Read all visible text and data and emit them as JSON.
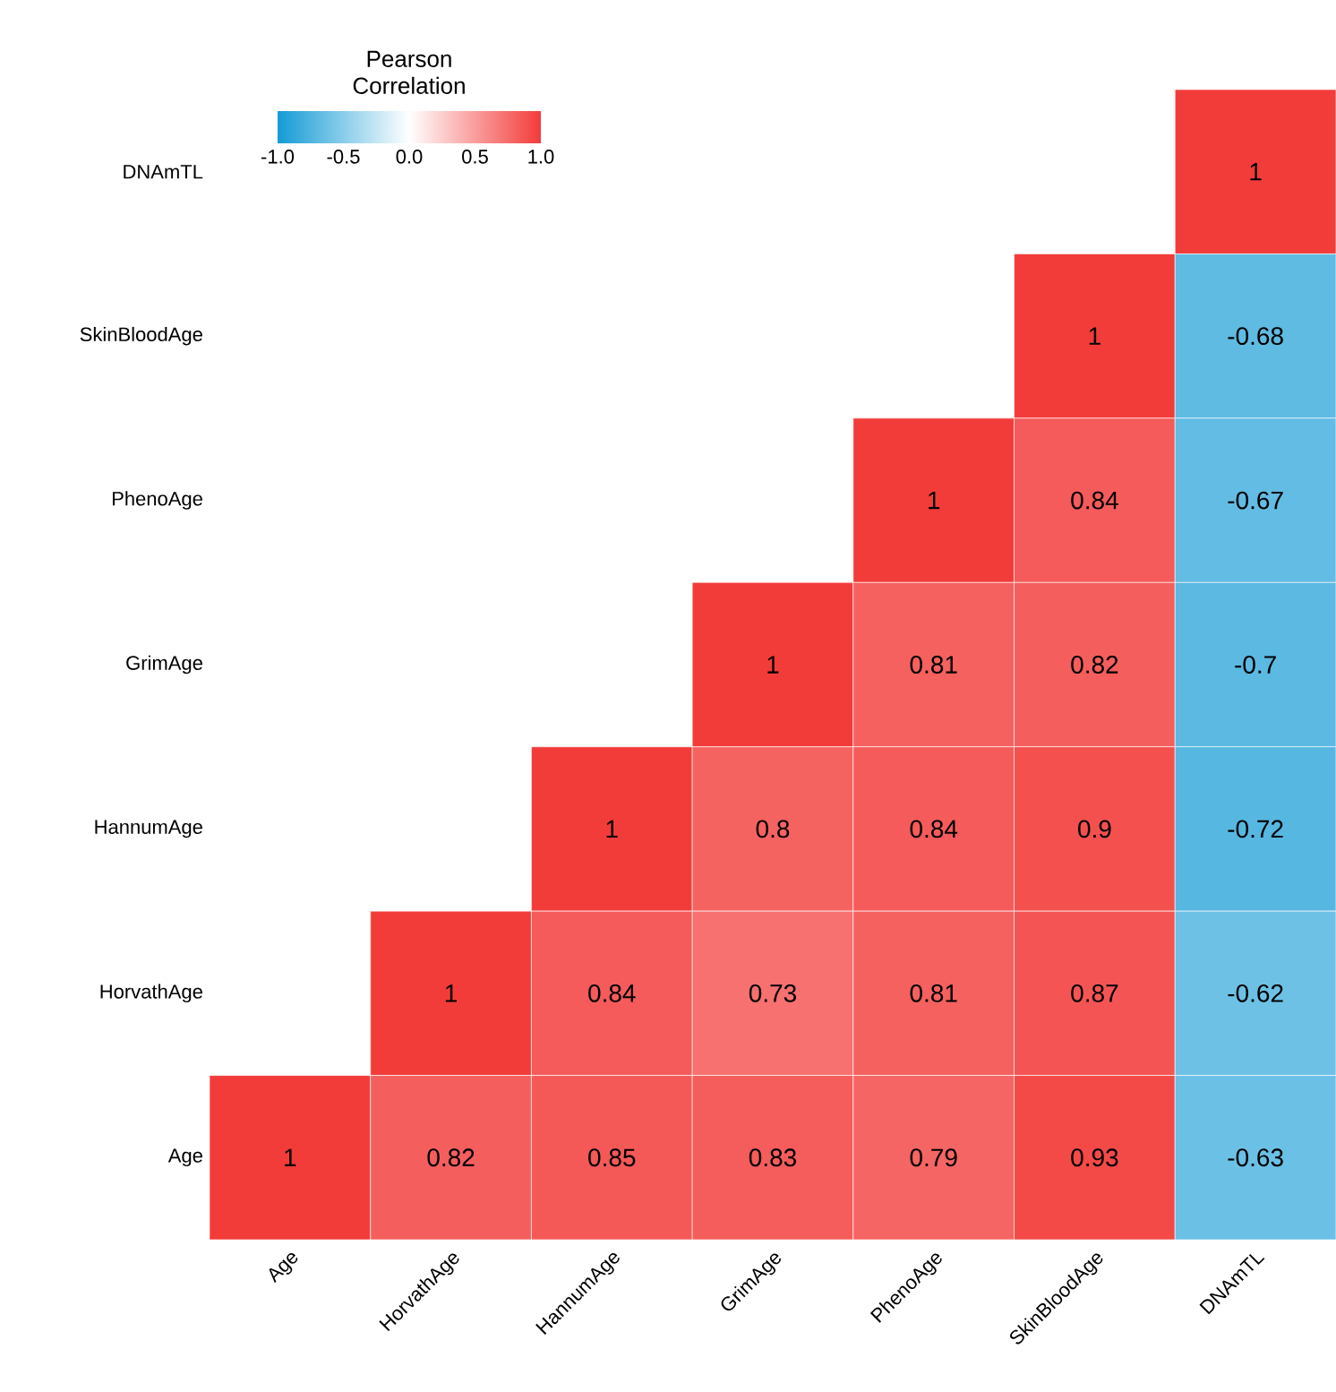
{
  "chart_data": {
    "type": "heatmap",
    "categories": [
      "Age",
      "HorvathAge",
      "HannumAge",
      "GrimAge",
      "PhenoAge",
      "SkinBloodAge",
      "DNAmTL"
    ],
    "y_categories": [
      "DNAmTL",
      "SkinBloodAge",
      "PhenoAge",
      "GrimAge",
      "HannumAge",
      "HorvathAge",
      "Age"
    ],
    "cells": [
      [
        null,
        null,
        null,
        null,
        null,
        null,
        1
      ],
      [
        null,
        null,
        null,
        null,
        null,
        1,
        -0.68
      ],
      [
        null,
        null,
        null,
        null,
        1,
        0.84,
        -0.67
      ],
      [
        null,
        null,
        null,
        1,
        0.81,
        0.82,
        -0.7
      ],
      [
        null,
        null,
        1,
        0.8,
        0.84,
        0.9,
        -0.72
      ],
      [
        null,
        1,
        0.84,
        0.73,
        0.81,
        0.87,
        -0.62
      ],
      [
        1,
        0.82,
        0.85,
        0.83,
        0.79,
        0.93,
        -0.63
      ]
    ],
    "data_labels": true,
    "clabel": "Pearson Correlation",
    "clim": [
      -1,
      1
    ],
    "cticks": [
      {
        "value": -1,
        "label": "-1.0"
      },
      {
        "value": -0.5,
        "label": "-0.5"
      },
      {
        "value": 0,
        "label": "0.0"
      },
      {
        "value": 0.5,
        "label": "0.5"
      },
      {
        "value": 1,
        "label": "1.0"
      }
    ]
  }
}
